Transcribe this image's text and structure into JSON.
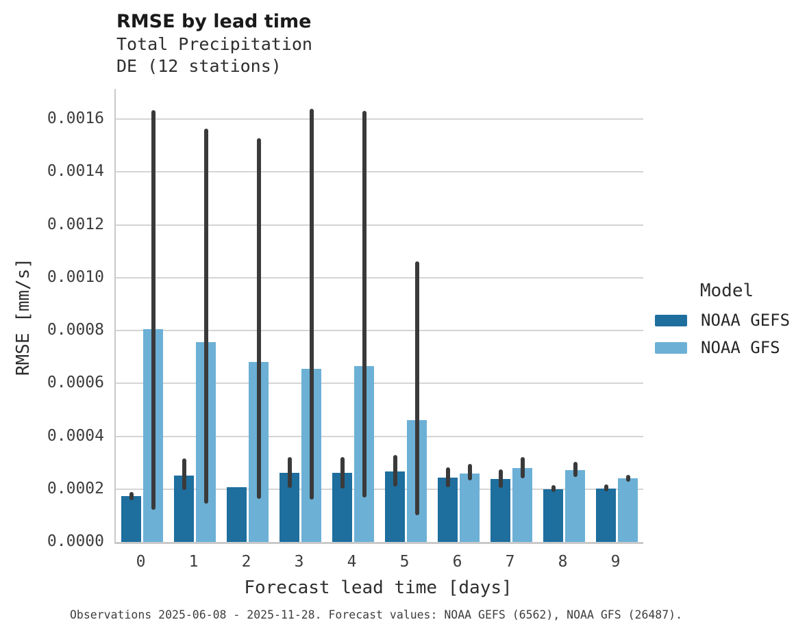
{
  "chart_data": {
    "type": "bar",
    "title": "RMSE by lead time",
    "subtitle_line1": "Total Precipitation",
    "subtitle_line2": "DE (12 stations)",
    "xlabel": "Forecast lead time [days]",
    "ylabel": "RMSE [mm/s]",
    "categories": [
      "0",
      "1",
      "2",
      "3",
      "4",
      "5",
      "6",
      "7",
      "8",
      "9"
    ],
    "ylim": [
      0,
      0.001714
    ],
    "yticks": [
      0.0,
      0.0002,
      0.0004,
      0.0006,
      0.0008,
      0.001,
      0.0012,
      0.0014,
      0.0016
    ],
    "grid": true,
    "legend": {
      "title": "Model",
      "position": "right"
    },
    "series": [
      {
        "name": "NOAA GEFS",
        "color": "#1e6e9e",
        "values": [
          0.000173,
          0.000251,
          0.000208,
          0.000261,
          0.000262,
          0.000266,
          0.000243,
          0.000239,
          0.0002,
          0.000203
        ],
        "err_low": [
          0.000158,
          0.000197,
          null,
          0.000204,
          0.000202,
          0.000211,
          0.000207,
          0.000205,
          0.000189,
          0.000192
        ],
        "err_high": [
          0.000189,
          0.000315,
          null,
          0.00032,
          0.00032,
          0.000328,
          0.000282,
          0.000275,
          0.000216,
          0.000218
        ]
      },
      {
        "name": "NOAA GFS",
        "color": "#6cb0d6",
        "values": [
          0.000805,
          0.000757,
          0.000682,
          0.000654,
          0.000665,
          0.000462,
          0.00026,
          0.00028,
          0.000271,
          0.00024
        ],
        "err_low": [
          0.000122,
          0.000145,
          0.000163,
          0.00016,
          0.000168,
          0.000101,
          0.000232,
          0.000242,
          0.000247,
          0.000227
        ],
        "err_high": [
          0.001635,
          0.001563,
          0.001528,
          0.00164,
          0.001632,
          0.001062,
          0.000295,
          0.00032,
          0.000304,
          0.000253
        ]
      }
    ],
    "error_bar_color": "#3a3a3a",
    "grid_color": "#d4d4d4",
    "spine_color": "#c9c9c9"
  },
  "caption": "Observations 2025-06-08 - 2025-11-28. Forecast values: NOAA GEFS (6562), NOAA GFS (26487)."
}
